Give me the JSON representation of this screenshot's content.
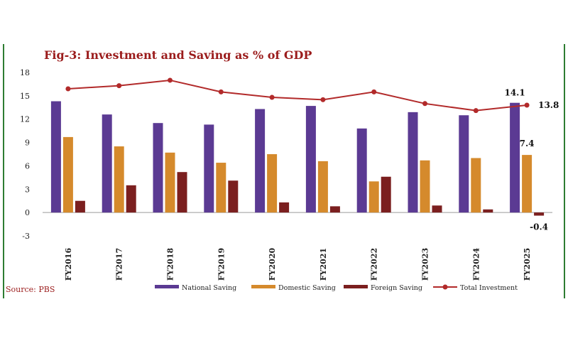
{
  "title": "Fig-3: Investment and Saving as % of GDP",
  "source": "Source: PBS",
  "colors": {
    "national": "#5b3a93",
    "domestic": "#d58a2c",
    "foreign": "#7b1f1f",
    "investment": "#b22a2a",
    "title": "#9b1c1c",
    "frame": "#2e7d32"
  },
  "chart_data": {
    "type": "bar",
    "categories": [
      "FY2016",
      "FY2017",
      "FY2018",
      "FY2019",
      "FY2020",
      "FY2021",
      "FY2022",
      "FY2023",
      "FY2024",
      "FY2025"
    ],
    "series": [
      {
        "name": "National Saving",
        "type": "bar",
        "values": [
          14.3,
          12.6,
          11.5,
          11.3,
          13.3,
          13.7,
          10.8,
          12.9,
          12.5,
          14.1
        ]
      },
      {
        "name": "Domestic Saving",
        "type": "bar",
        "values": [
          9.7,
          8.5,
          7.7,
          6.4,
          7.5,
          6.6,
          4.0,
          6.7,
          7.0,
          7.4
        ]
      },
      {
        "name": "Foreign Saving",
        "type": "bar",
        "values": [
          1.5,
          3.5,
          5.2,
          4.1,
          1.3,
          0.8,
          4.6,
          0.9,
          0.4,
          -0.4
        ]
      },
      {
        "name": "Total Investment",
        "type": "line",
        "values": [
          15.9,
          16.3,
          17.0,
          15.5,
          14.8,
          14.5,
          15.5,
          14.0,
          13.1,
          13.8
        ]
      }
    ],
    "ylim": [
      -3,
      18
    ],
    "yticks": [
      "18",
      "15",
      "12",
      "9",
      "6",
      "3",
      "0",
      "-3"
    ],
    "data_labels": [
      {
        "series": "National Saving",
        "category": "FY2025",
        "text": "14.1"
      },
      {
        "series": "Domestic Saving",
        "category": "FY2025",
        "text": "7.4"
      },
      {
        "series": "Foreign Saving",
        "category": "FY2025",
        "text": "-0.4"
      },
      {
        "series": "Total Investment",
        "category": "FY2025",
        "text": "13.8"
      }
    ],
    "legend_position": "bottom",
    "grid": false
  }
}
